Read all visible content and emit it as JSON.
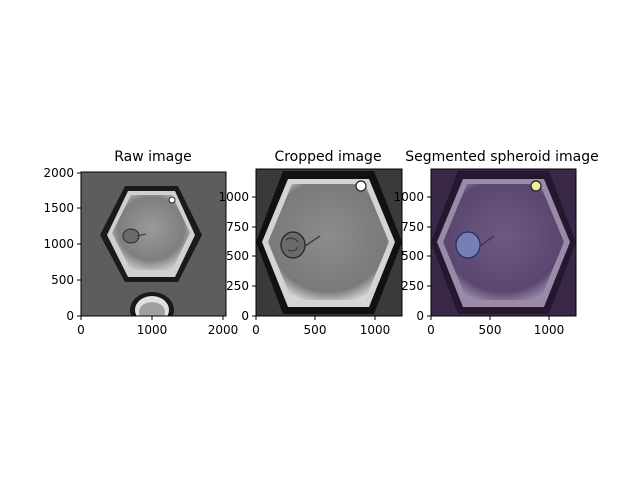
{
  "figure": {
    "panels": [
      {
        "id": "raw",
        "title": "Raw image",
        "x_ticks": [
          "0",
          "1000",
          "2000"
        ],
        "y_ticks": [
          "0",
          "500",
          "1000",
          "1500",
          "2000"
        ],
        "content": "grayscale micrograph of a hexagonal well containing a spheroid"
      },
      {
        "id": "cropped",
        "title": "Cropped image",
        "x_ticks": [
          "0",
          "500",
          "1000"
        ],
        "y_ticks": [
          "0",
          "250",
          "500",
          "750",
          "1000"
        ],
        "content": "zoomed hexagonal well with spheroid"
      },
      {
        "id": "segmented",
        "title": "Segmented spheroid image",
        "x_ticks": [
          "0",
          "500",
          "1000"
        ],
        "y_ticks": [
          "0",
          "250",
          "500",
          "750",
          "1000"
        ],
        "content": "purple-tinted overlay with segmented spheroid mask"
      }
    ],
    "colors": {
      "raw_bg": "#5d5d5d",
      "well_inner": "#8f8f8f",
      "overlay": "#4b2d5e",
      "mask": "#7d8cc8"
    }
  }
}
